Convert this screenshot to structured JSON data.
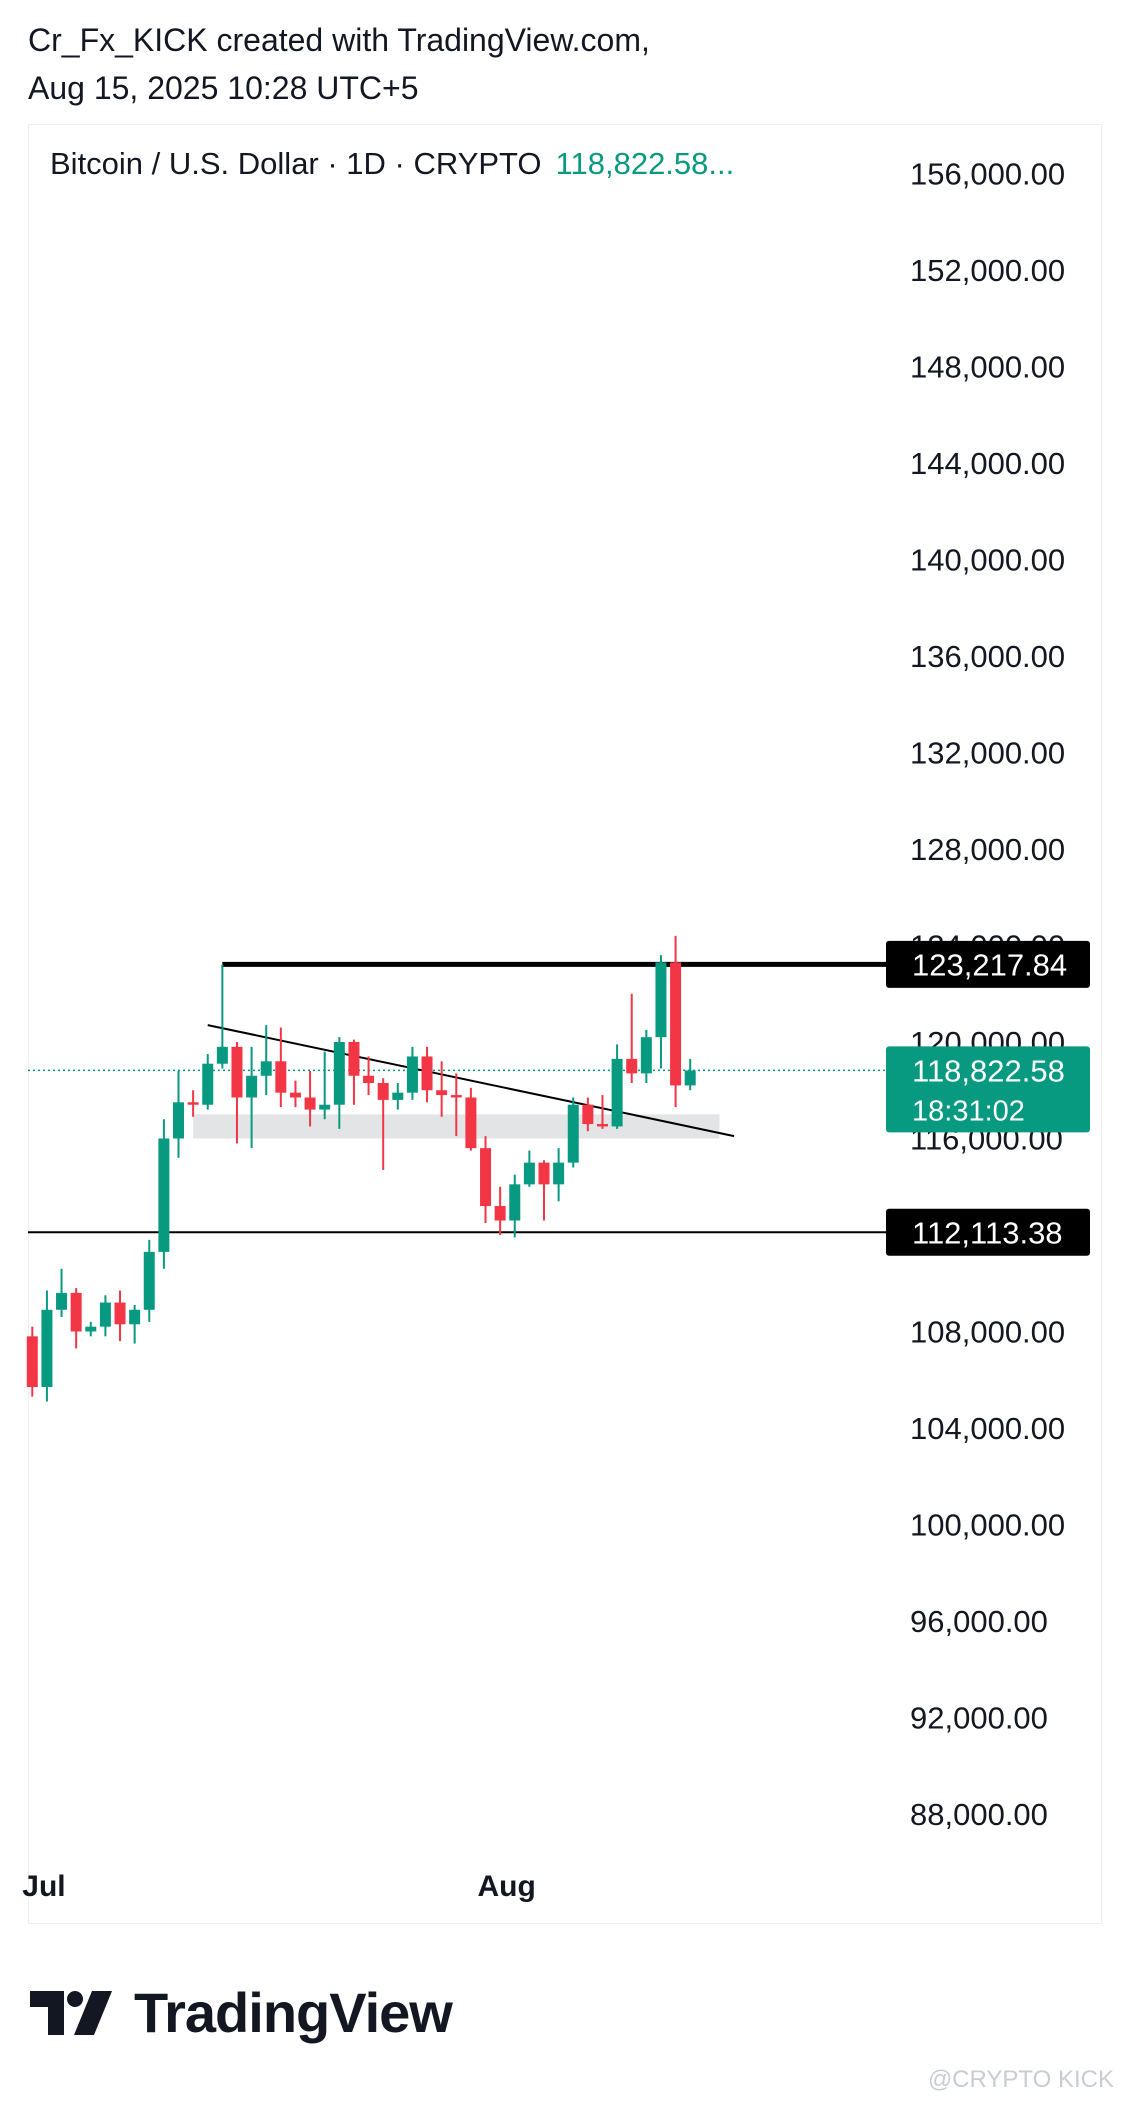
{
  "credit": {
    "line1": "Cr_Fx_KICK created with TradingView.com,",
    "line2": "Aug 15, 2025 10:28 UTC+5"
  },
  "legend": {
    "symbol": "Bitcoin / U.S. Dollar · 1D · CRYPTO",
    "price": "118,822.58..."
  },
  "brand": {
    "name": "TradingView",
    "icon": "tradingview-logo-icon"
  },
  "watermark": "@CRYPTO KICK",
  "colors": {
    "up": "#089981",
    "down": "#f23645",
    "text": "#131722",
    "grid_frame": "#eceff2",
    "zone": "#d9dbde",
    "line": "#000000"
  },
  "chart_data": {
    "type": "candlestick",
    "symbol": "Bitcoin / U.S. Dollar",
    "interval": "1D",
    "ylim": [
      86000,
      158000
    ],
    "yticks": [
      {
        "value": 156000,
        "label": "156,000.00"
      },
      {
        "value": 152000,
        "label": "152,000.00"
      },
      {
        "value": 148000,
        "label": "148,000.00"
      },
      {
        "value": 144000,
        "label": "144,000.00"
      },
      {
        "value": 140000,
        "label": "140,000.00"
      },
      {
        "value": 136000,
        "label": "136,000.00"
      },
      {
        "value": 132000,
        "label": "132,000.00"
      },
      {
        "value": 128000,
        "label": "128,000.00"
      },
      {
        "value": 124000,
        "label": "124,000.00"
      },
      {
        "value": 120000,
        "label": "120,000.00"
      },
      {
        "value": 116000,
        "label": "116,000.00"
      },
      {
        "value": 108000,
        "label": "108,000.00"
      },
      {
        "value": 104000,
        "label": "104,000.00"
      },
      {
        "value": 100000,
        "label": "100,000.00"
      },
      {
        "value": 96000,
        "label": "96,000.00"
      },
      {
        "value": 92000,
        "label": "92,000.00"
      },
      {
        "value": 88000,
        "label": "88,000.00"
      }
    ],
    "xticks": [
      {
        "index": 0,
        "label": "Jul"
      },
      {
        "index": 31,
        "label": "Aug"
      }
    ],
    "candles": [
      {
        "date": "2025-07-01",
        "o": 107800,
        "h": 108200,
        "l": 105300,
        "c": 105700
      },
      {
        "date": "2025-07-02",
        "o": 105700,
        "h": 109700,
        "l": 105100,
        "c": 108900
      },
      {
        "date": "2025-07-03",
        "o": 108900,
        "h": 110600,
        "l": 108600,
        "c": 109600
      },
      {
        "date": "2025-07-04",
        "o": 109600,
        "h": 109800,
        "l": 107300,
        "c": 108000
      },
      {
        "date": "2025-07-05",
        "o": 108000,
        "h": 108400,
        "l": 107800,
        "c": 108200
      },
      {
        "date": "2025-07-06",
        "o": 108200,
        "h": 109500,
        "l": 107800,
        "c": 109200
      },
      {
        "date": "2025-07-07",
        "o": 109200,
        "h": 109700,
        "l": 107600,
        "c": 108300
      },
      {
        "date": "2025-07-08",
        "o": 108300,
        "h": 109100,
        "l": 107500,
        "c": 108900
      },
      {
        "date": "2025-07-09",
        "o": 108900,
        "h": 111800,
        "l": 108400,
        "c": 111300
      },
      {
        "date": "2025-07-10",
        "o": 111300,
        "h": 116800,
        "l": 110600,
        "c": 116000
      },
      {
        "date": "2025-07-11",
        "o": 116000,
        "h": 118800,
        "l": 115200,
        "c": 117500
      },
      {
        "date": "2025-07-12",
        "o": 117500,
        "h": 118000,
        "l": 116900,
        "c": 117400
      },
      {
        "date": "2025-07-13",
        "o": 117400,
        "h": 119500,
        "l": 117200,
        "c": 119100
      },
      {
        "date": "2025-07-14",
        "o": 119100,
        "h": 123200,
        "l": 118900,
        "c": 119800
      },
      {
        "date": "2025-07-15",
        "o": 119800,
        "h": 120000,
        "l": 115800,
        "c": 117700
      },
      {
        "date": "2025-07-16",
        "o": 117700,
        "h": 119800,
        "l": 115600,
        "c": 118600
      },
      {
        "date": "2025-07-17",
        "o": 118600,
        "h": 120700,
        "l": 117800,
        "c": 119200
      },
      {
        "date": "2025-07-18",
        "o": 119200,
        "h": 120600,
        "l": 117300,
        "c": 117900
      },
      {
        "date": "2025-07-19",
        "o": 117900,
        "h": 118400,
        "l": 117300,
        "c": 117700
      },
      {
        "date": "2025-07-20",
        "o": 117700,
        "h": 118800,
        "l": 116500,
        "c": 117200
      },
      {
        "date": "2025-07-21",
        "o": 117200,
        "h": 119600,
        "l": 116800,
        "c": 117400
      },
      {
        "date": "2025-07-22",
        "o": 117400,
        "h": 120200,
        "l": 116400,
        "c": 120000
      },
      {
        "date": "2025-07-23",
        "o": 120000,
        "h": 120100,
        "l": 117400,
        "c": 118600
      },
      {
        "date": "2025-07-24",
        "o": 118600,
        "h": 119400,
        "l": 117800,
        "c": 118300
      },
      {
        "date": "2025-07-25",
        "o": 118300,
        "h": 118500,
        "l": 114700,
        "c": 117600
      },
      {
        "date": "2025-07-26",
        "o": 117600,
        "h": 118300,
        "l": 117200,
        "c": 117900
      },
      {
        "date": "2025-07-27",
        "o": 117900,
        "h": 119800,
        "l": 117600,
        "c": 119400
      },
      {
        "date": "2025-07-28",
        "o": 119400,
        "h": 119800,
        "l": 117500,
        "c": 118000
      },
      {
        "date": "2025-07-29",
        "o": 118000,
        "h": 119200,
        "l": 116900,
        "c": 117800
      },
      {
        "date": "2025-07-30",
        "o": 117800,
        "h": 118700,
        "l": 116100,
        "c": 117700
      },
      {
        "date": "2025-07-31",
        "o": 117700,
        "h": 118100,
        "l": 115500,
        "c": 115600
      },
      {
        "date": "2025-08-01",
        "o": 115600,
        "h": 116100,
        "l": 112500,
        "c": 113200
      },
      {
        "date": "2025-08-02",
        "o": 113200,
        "h": 114000,
        "l": 112000,
        "c": 112600
      },
      {
        "date": "2025-08-03",
        "o": 112600,
        "h": 114500,
        "l": 111900,
        "c": 114100
      },
      {
        "date": "2025-08-04",
        "o": 114100,
        "h": 115500,
        "l": 114000,
        "c": 115000
      },
      {
        "date": "2025-08-05",
        "o": 115000,
        "h": 115100,
        "l": 112600,
        "c": 114100
      },
      {
        "date": "2025-08-06",
        "o": 114100,
        "h": 115600,
        "l": 113400,
        "c": 115000
      },
      {
        "date": "2025-08-07",
        "o": 115000,
        "h": 117700,
        "l": 114800,
        "c": 117400
      },
      {
        "date": "2025-08-08",
        "o": 117400,
        "h": 117700,
        "l": 116300,
        "c": 116600
      },
      {
        "date": "2025-08-09",
        "o": 116600,
        "h": 117800,
        "l": 116400,
        "c": 116500
      },
      {
        "date": "2025-08-10",
        "o": 116500,
        "h": 119900,
        "l": 116400,
        "c": 119300
      },
      {
        "date": "2025-08-11",
        "o": 119300,
        "h": 122000,
        "l": 118300,
        "c": 118700
      },
      {
        "date": "2025-08-12",
        "o": 118700,
        "h": 120500,
        "l": 118300,
        "c": 120200
      },
      {
        "date": "2025-08-13",
        "o": 120200,
        "h": 123600,
        "l": 118900,
        "c": 123300
      },
      {
        "date": "2025-08-14",
        "o": 123300,
        "h": 124400,
        "l": 117300,
        "c": 118200
      },
      {
        "date": "2025-08-15",
        "o": 118200,
        "h": 119300,
        "l": 118000,
        "c": 118822
      }
    ],
    "horizontal_lines": [
      {
        "price": 123217.84,
        "label": "123,217.84",
        "from_index": 13
      },
      {
        "price": 112113.38,
        "label": "112,113.38",
        "from_index": 0
      }
    ],
    "trendline": {
      "from": {
        "index": 12,
        "price": 120700
      },
      "to": {
        "index": 48,
        "price": 116100
      }
    },
    "zone": {
      "from_index": 11,
      "to_index": 47,
      "top": 117000,
      "bottom": 116000
    },
    "last_price": {
      "price": 118822.58,
      "label": "118,822.58",
      "countdown": "18:31:02"
    }
  }
}
